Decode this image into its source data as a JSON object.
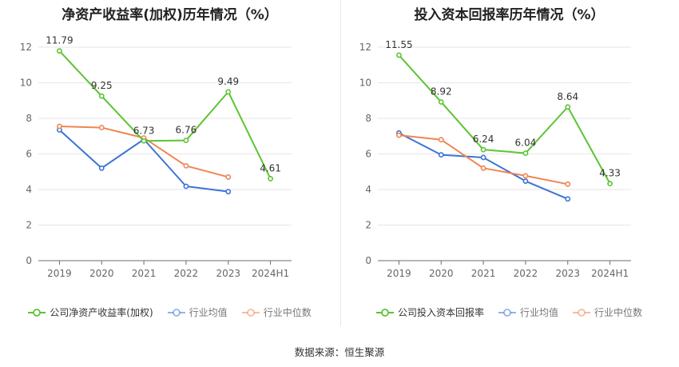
{
  "source_text": "数据来源：恒生聚源",
  "chart_data": [
    {
      "type": "line",
      "title": "净资产收益率(加权)历年情况（%）",
      "categories": [
        "2019",
        "2020",
        "2021",
        "2022",
        "2023",
        "2024H1"
      ],
      "ylim": [
        0,
        12
      ],
      "yticks": [
        0,
        2,
        4,
        6,
        8,
        10,
        12
      ],
      "grid": true,
      "legend_position": "bottom",
      "series": [
        {
          "name": "公司净资产收益率(加权)",
          "color": "#5cc433",
          "values": [
            11.79,
            9.25,
            6.73,
            6.76,
            9.49,
            4.61
          ],
          "labels": [
            "11.79",
            "9.25",
            "6.73",
            "6.76",
            "9.49",
            "4.61"
          ]
        },
        {
          "name": "行业均值",
          "color": "#3d74d6",
          "values": [
            7.35,
            5.2,
            6.82,
            4.18,
            3.88,
            null
          ]
        },
        {
          "name": "行业中位数",
          "color": "#ee8653",
          "values": [
            7.55,
            7.48,
            6.9,
            5.33,
            4.7,
            null
          ]
        }
      ]
    },
    {
      "type": "line",
      "title": "投入资本回报率历年情况（%）",
      "categories": [
        "2019",
        "2020",
        "2021",
        "2022",
        "2023",
        "2024H1"
      ],
      "ylim": [
        0,
        12
      ],
      "yticks": [
        0,
        2,
        4,
        6,
        8,
        10,
        12
      ],
      "grid": true,
      "legend_position": "bottom",
      "series": [
        {
          "name": "公司投入资本回报率",
          "color": "#5cc433",
          "values": [
            11.55,
            8.92,
            6.24,
            6.04,
            8.64,
            4.33
          ],
          "labels": [
            "11.55",
            "8.92",
            "6.24",
            "6.04",
            "8.64",
            "4.33"
          ]
        },
        {
          "name": "行业均值",
          "color": "#3d74d6",
          "values": [
            7.18,
            5.95,
            5.8,
            4.47,
            3.47,
            null
          ]
        },
        {
          "name": "行业中位数",
          "color": "#ee8653",
          "values": [
            7.05,
            6.8,
            5.2,
            4.77,
            4.3,
            null
          ]
        }
      ]
    }
  ]
}
